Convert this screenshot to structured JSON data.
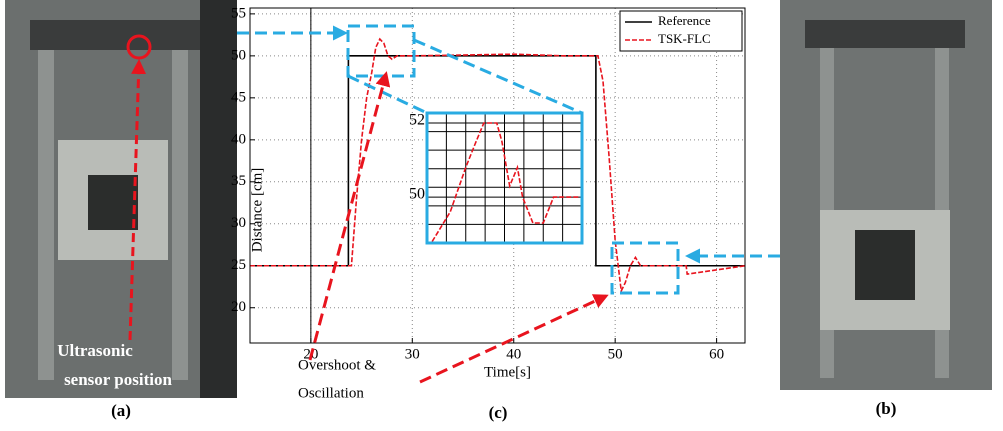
{
  "chart_data": [
    {
      "type": "line",
      "xlabel": "Time[s]",
      "ylabel": "Distance [cm]",
      "xlim": [
        14,
        62.8
      ],
      "ylim": [
        15.8,
        55.7
      ],
      "xticks": [
        20,
        30,
        40,
        50,
        60
      ],
      "yticks": [
        20,
        25,
        30,
        35,
        40,
        45,
        50,
        55
      ],
      "grid": true,
      "legend": "upper right",
      "series": [
        {
          "name": "Reference",
          "color": "#000000",
          "dash": false,
          "x": [
            14,
            23.7,
            23.7,
            48.1,
            48.1,
            62.8
          ],
          "values": [
            25,
            25,
            50,
            50,
            25,
            25
          ]
        },
        {
          "name": "TSK-FLC",
          "color": "#e8141e",
          "dash": true,
          "x": [
            14,
            24,
            24.5,
            25,
            25.5,
            26,
            26.4,
            26.8,
            27.2,
            27.6,
            28,
            28.5,
            30,
            40,
            45,
            47,
            48.3,
            48.8,
            49.4,
            50,
            50.6,
            51,
            51.5,
            52,
            52.5,
            53,
            56,
            57,
            57.1,
            62.8
          ],
          "values": [
            25,
            25,
            33,
            40,
            45,
            48,
            51,
            52,
            51.5,
            50,
            49.6,
            50,
            50,
            50.2,
            50,
            50,
            50,
            47,
            38,
            28,
            22,
            23,
            25,
            26,
            25,
            25,
            25,
            25,
            24,
            25
          ]
        }
      ],
      "annotations": [
        "Overshoot &",
        "Oscillation"
      ],
      "panel_label": "(c)"
    },
    {
      "type": "line",
      "xlim": [
        24.3,
        30.3
      ],
      "ylim": [
        48.76,
        52.27
      ],
      "yticks": [
        50,
        52
      ],
      "grid": true,
      "series": [
        {
          "name": null,
          "color": "#e8141e",
          "dash": true,
          "x": [
            24.5,
            25.2,
            25.8,
            26.2,
            26.5,
            27,
            27.2,
            27.5,
            27.8,
            28,
            28.4,
            28.8,
            29.2,
            29.5,
            30.2
          ],
          "values": [
            48.8,
            49.6,
            50.8,
            51.5,
            52,
            52,
            51.5,
            50.3,
            50.8,
            50,
            49.3,
            49.3,
            50,
            50,
            50
          ]
        }
      ]
    }
  ],
  "photos": {
    "left_caption": "(a)",
    "left_note": [
      "Ultrasonic",
      "sensor position"
    ],
    "right_caption": "(b)"
  }
}
